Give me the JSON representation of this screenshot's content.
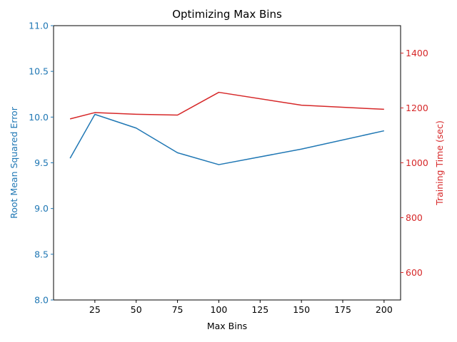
{
  "chart_data": {
    "type": "line",
    "title": "Optimizing Max Bins",
    "xlabel": "Max Bins",
    "x_ticks": [
      25,
      50,
      75,
      100,
      125,
      150,
      175,
      200
    ],
    "xlim": [
      0,
      210
    ],
    "left_axis": {
      "label": "Root Mean Squared Error",
      "color": "#1f77b4",
      "ylim": [
        8.0,
        11.0
      ],
      "ticks": [
        "8.0",
        "8.5",
        "9.0",
        "9.5",
        "10.0",
        "10.5",
        "11.0"
      ]
    },
    "right_axis": {
      "label": "Training Time (sec)",
      "color": "#d62728",
      "ylim": [
        500,
        1500
      ],
      "ticks": [
        "600",
        "800",
        "1000",
        "1200",
        "1400"
      ]
    },
    "x": [
      10,
      25,
      50,
      75,
      100,
      150,
      200
    ],
    "series": [
      {
        "axis": "left",
        "color": "#1f77b4",
        "values": [
          9.55,
          10.03,
          9.88,
          9.61,
          9.48,
          9.65,
          9.85
        ]
      },
      {
        "axis": "right",
        "color": "#d62728",
        "values": [
          1160,
          1183,
          1177,
          1174,
          1257,
          1210,
          1195
        ]
      }
    ],
    "grid": false,
    "legend": "none"
  }
}
